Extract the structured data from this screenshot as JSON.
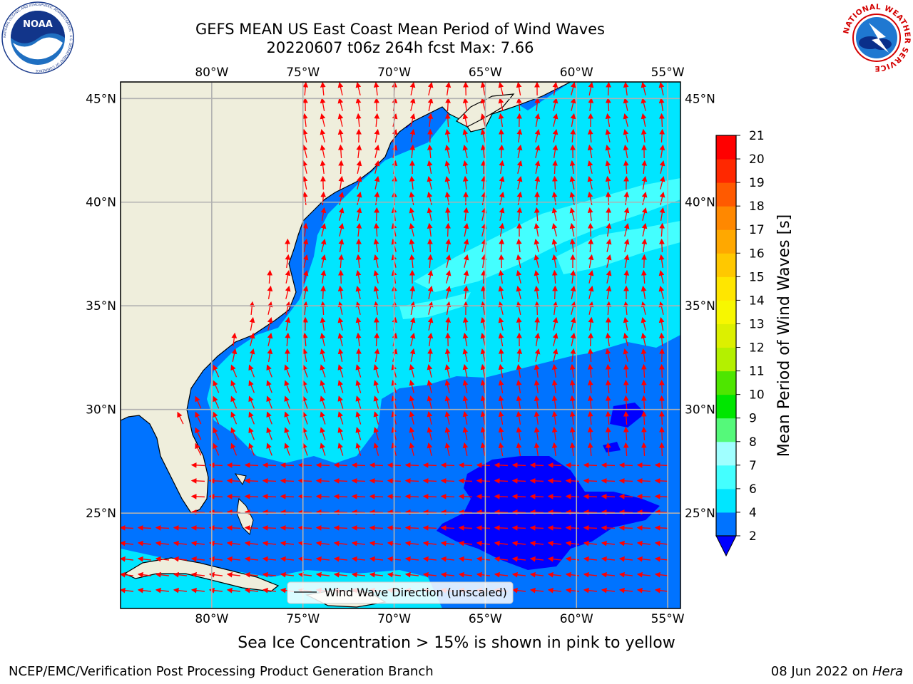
{
  "figure": {
    "title_line1": "GEFS MEAN US East Coast Mean Period of Wind Waves",
    "title_line2": "20220607 t06z 264h fcst   Max: 7.66",
    "sea_ice_note": "Sea Ice Concentration > 15% is shown in pink to yellow",
    "footer_left": "NCEP/EMC/Verification Post Processing Product Generation Branch",
    "footer_right_date": "08 Jun 2022 on",
    "footer_right_machine": "Hera"
  },
  "logos": {
    "noaa_text": "NOAA",
    "noaa_ring_text": "NATIONAL OCEANIC AND ATMOSPHERIC ADMINISTRATION · U.S. DEPARTMENT OF COMMERCE",
    "nws_ring_text": "NATIONAL WEATHER SERVICE"
  },
  "map": {
    "lon_ticks": [
      "80°W",
      "75°W",
      "70°W",
      "65°W",
      "60°W",
      "55°W"
    ],
    "lat_ticks": [
      "45°N",
      "40°N",
      "35°N",
      "30°N",
      "25°N"
    ],
    "lon_values": [
      -80,
      -75,
      -70,
      -65,
      -60,
      -55
    ],
    "lat_values": [
      45,
      40,
      35,
      30,
      25
    ],
    "lon_range": [
      -85,
      -54.3
    ],
    "lat_range": [
      20.4,
      45.8
    ],
    "legend_label": "Wind Wave Direction (unscaled)",
    "arrow_color": "#ff0000",
    "land_color": "#efeedc"
  },
  "colorbar": {
    "label": "Mean Period of Wind Waves [s]",
    "ticks": [
      2,
      4,
      6,
      7,
      8,
      9,
      10,
      11,
      12,
      13,
      14,
      15,
      16,
      17,
      18,
      19,
      20,
      21
    ],
    "colors": [
      "#0073ff",
      "#00e6ff",
      "#44ffff",
      "#a0ffff",
      "#55f97a",
      "#00e600",
      "#4ee600",
      "#b4f000",
      "#dcf000",
      "#f7f700",
      "#ffe600",
      "#ffc800",
      "#ffa800",
      "#ff8800",
      "#ff5a00",
      "#ff2800",
      "#ff0000"
    ],
    "extend_min_color": "#0000ff"
  },
  "chart_data": {
    "type": "heatmap",
    "title": "GEFS MEAN US East Coast Mean Period of Wind Waves",
    "subtitle": "20220607 t06z 264h fcst   Max: 7.66",
    "colorbar_label": "Mean Period of Wind Waves [s]",
    "value_range": [
      2,
      21
    ],
    "max_value": 7.66,
    "x_range": [
      -85,
      -54.3
    ],
    "y_range": [
      20.4,
      45.8
    ],
    "regions": [
      {
        "name": "open ocean north of ~32°N",
        "period_s": "4–6"
      },
      {
        "name": "near coast and south of ~31°N",
        "period_s": "2–4"
      },
      {
        "name": "subtropical patch ~23–28°N, 57–67°W",
        "period_s": "< 2"
      },
      {
        "name": "streaks ~37–42°N, 55–70°W",
        "period_s": "6–7"
      }
    ]
  }
}
